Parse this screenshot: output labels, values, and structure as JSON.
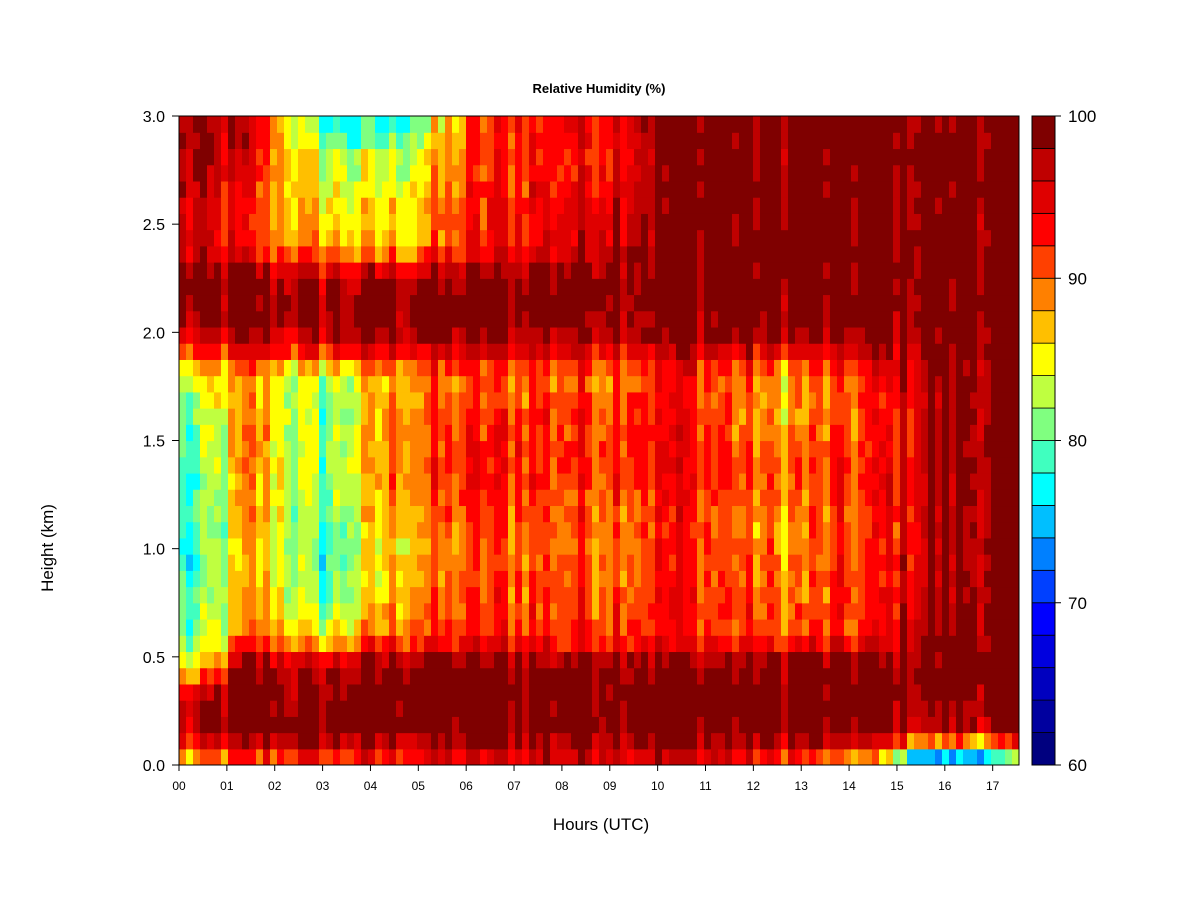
{
  "chart_data": {
    "type": "heatmap",
    "title": "Relative Humidity (%)",
    "xlabel": "Hours (UTC)",
    "ylabel": "Height (km)",
    "x_ticks": [
      "00",
      "01",
      "02",
      "03",
      "04",
      "05",
      "06",
      "07",
      "08",
      "09",
      "10",
      "11",
      "12",
      "13",
      "14",
      "15",
      "16",
      "17"
    ],
    "y_ticks": [
      "0.0",
      "0.5",
      "1.0",
      "1.5",
      "2.0",
      "2.5",
      "3.0"
    ],
    "xlim": [
      0,
      17.55
    ],
    "ylim": [
      0,
      3.0
    ],
    "colorbar": {
      "ticks": [
        "60",
        "70",
        "80",
        "90",
        "100"
      ],
      "range": [
        60,
        100
      ],
      "levels": 20,
      "colors": [
        "#00007f",
        "#00009f",
        "#0000bf",
        "#0000df",
        "#0000ff",
        "#0040ff",
        "#0080ff",
        "#00bfff",
        "#00ffff",
        "#40ffbf",
        "#80ff80",
        "#bfff40",
        "#ffff00",
        "#ffbf00",
        "#ff8000",
        "#ff4000",
        "#ff0000",
        "#df0000",
        "#bf0000",
        "#7f0000"
      ]
    },
    "approx_profile_height_km": [
      0.02,
      0.15,
      0.3,
      0.45,
      0.6,
      0.8,
      1.0,
      1.2,
      1.4,
      1.6,
      1.8,
      1.95,
      2.1,
      2.25,
      2.4,
      2.6,
      2.8,
      2.95
    ],
    "approx_rh_percent_by_hour": [
      {
        "hour": 0.4,
        "rh": [
          86,
          96,
          97,
          84,
          80,
          79,
          78,
          78,
          79,
          80,
          84,
          92,
          98,
          99,
          95,
          96,
          97,
          97
        ]
      },
      {
        "hour": 1.5,
        "rh": [
          90,
          100,
          100,
          100,
          90,
          88,
          87,
          88,
          89,
          89,
          88,
          96,
          100,
          99,
          91,
          91,
          94,
          95
        ]
      },
      {
        "hour": 3.0,
        "rh": [
          91,
          100,
          99,
          96,
          84,
          80,
          79,
          80,
          81,
          80,
          82,
          95,
          99,
          97,
          88,
          85,
          83,
          78
        ]
      },
      {
        "hour": 4.5,
        "rh": [
          92,
          100,
          100,
          100,
          90,
          88,
          87,
          88,
          90,
          89,
          88,
          97,
          100,
          98,
          86,
          86,
          83,
          78
        ]
      },
      {
        "hour": 6.5,
        "rh": [
          94,
          100,
          100,
          100,
          92,
          91,
          90,
          92,
          93,
          92,
          90,
          97,
          100,
          99,
          93,
          93,
          92,
          92
        ]
      },
      {
        "hour": 8.5,
        "rh": [
          96,
          100,
          100,
          100,
          92,
          91,
          90,
          91,
          92,
          92,
          90,
          97,
          100,
          100,
          96,
          95,
          93,
          94
        ]
      },
      {
        "hour": 10.5,
        "rh": [
          96,
          100,
          100,
          100,
          93,
          93,
          92,
          93,
          94,
          93,
          93,
          98,
          100,
          100,
          100,
          100,
          100,
          100
        ]
      },
      {
        "hour": 12.5,
        "rh": [
          92,
          100,
          100,
          100,
          90,
          89,
          88,
          88,
          90,
          87,
          87,
          97,
          100,
          100,
          100,
          100,
          100,
          100
        ]
      },
      {
        "hour": 14.5,
        "rh": [
          86,
          99,
          100,
          100,
          92,
          92,
          91,
          92,
          92,
          91,
          92,
          97,
          100,
          100,
          100,
          100,
          100,
          100
        ]
      },
      {
        "hour": 15.7,
        "rh": [
          70,
          96,
          100,
          100,
          99,
          98,
          97,
          97,
          98,
          97,
          99,
          100,
          100,
          100,
          100,
          100,
          100,
          100
        ]
      },
      {
        "hour": 17.3,
        "rh": [
          76,
          97,
          100,
          100,
          100,
          99,
          99,
          99,
          100,
          99,
          100,
          100,
          100,
          100,
          100,
          100,
          100,
          100
        ]
      }
    ]
  }
}
